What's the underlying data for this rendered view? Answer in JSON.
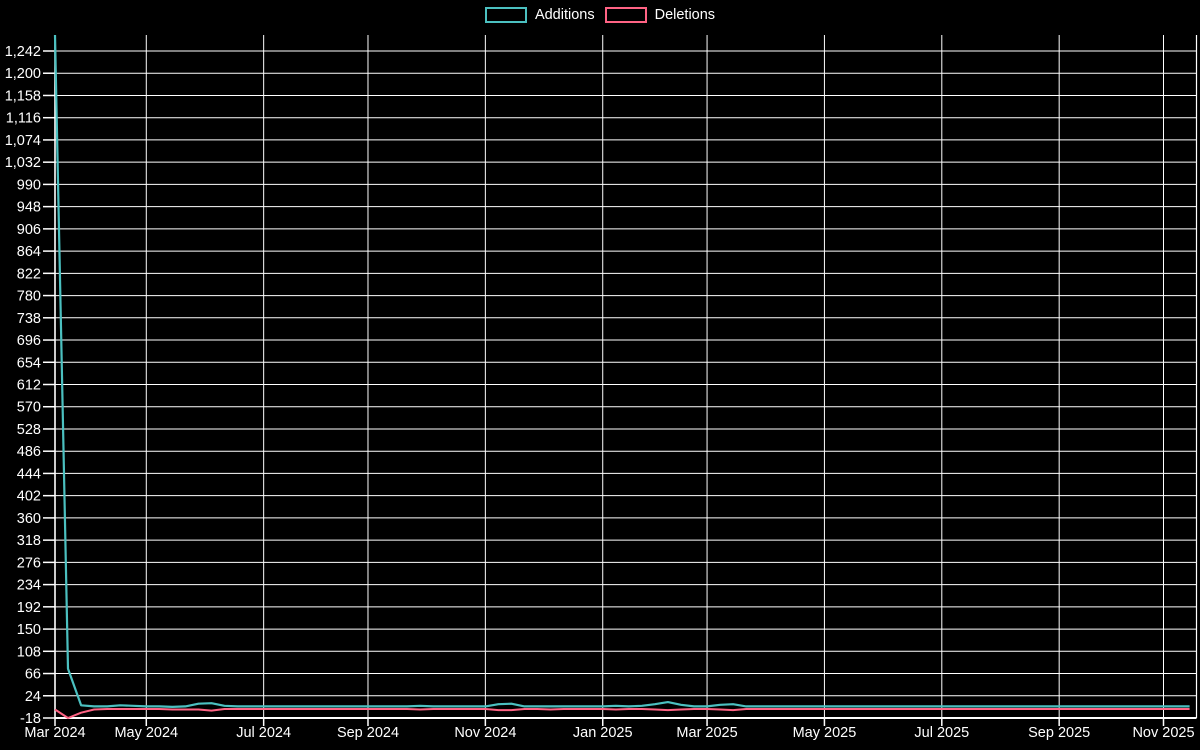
{
  "colors": {
    "background": "#000000",
    "grid": "#ffffff",
    "axis_text": "#ffffff",
    "additions": "#4bc0c0",
    "deletions": "#ff6384"
  },
  "chart_data": {
    "type": "line",
    "title": "",
    "xlabel": "",
    "ylabel": "",
    "legend_position": "top-center",
    "grid": true,
    "ylim": [
      -18,
      1272
    ],
    "y_tick_step": 42,
    "y_tick_labels": [
      "1,242",
      "1,200",
      "1,158",
      "1,116",
      "1,074",
      "1,032",
      "990",
      "948",
      "906",
      "864",
      "822",
      "780",
      "738",
      "696",
      "654",
      "612",
      "570",
      "528",
      "486",
      "444",
      "402",
      "360",
      "318",
      "276",
      "234",
      "192",
      "150",
      "108",
      "66",
      "24",
      "-18"
    ],
    "x_ticks": [
      {
        "label": "Mar 2024",
        "week": 0
      },
      {
        "label": "May 2024",
        "week": 7
      },
      {
        "label": "Jul 2024",
        "week": 16
      },
      {
        "label": "Sep 2024",
        "week": 24
      },
      {
        "label": "Nov 2024",
        "week": 33
      },
      {
        "label": "Jan 2025",
        "week": 42
      },
      {
        "label": "Mar 2025",
        "week": 50
      },
      {
        "label": "May 2025",
        "week": 59
      },
      {
        "label": "Jul 2025",
        "week": 68
      },
      {
        "label": "Sep 2025",
        "week": 77
      },
      {
        "label": "Nov 2025",
        "week": 85
      }
    ],
    "weeks_total": 88,
    "series": [
      {
        "name": "Additions",
        "color": "#4bc0c0",
        "values": [
          1272,
          75,
          6,
          4,
          4,
          6,
          5,
          4,
          4,
          3,
          4,
          9,
          10,
          5,
          4,
          4,
          4,
          4,
          4,
          4,
          4,
          4,
          4,
          4,
          4,
          4,
          4,
          4,
          5,
          4,
          4,
          4,
          4,
          4,
          8,
          9,
          4,
          4,
          4,
          4,
          4,
          4,
          4,
          5,
          4,
          5,
          8,
          12,
          7,
          4,
          4,
          7,
          8,
          4,
          4,
          4,
          4,
          4,
          4,
          4,
          4,
          4,
          4,
          4,
          4,
          4,
          4,
          4,
          4,
          4,
          4,
          4,
          4,
          4,
          4,
          4,
          4,
          4,
          4,
          4,
          4,
          4,
          4,
          4,
          4,
          4,
          4,
          4
        ]
      },
      {
        "name": "Deletions",
        "color": "#ff6384",
        "values": [
          -2,
          -18,
          -8,
          -2,
          -1,
          -1,
          -1,
          -1,
          -1,
          -2,
          -2,
          -2,
          -4,
          -1,
          -1,
          -1,
          -1,
          -1,
          -1,
          -1,
          -1,
          -1,
          -1,
          -1,
          -1,
          -1,
          -1,
          -1,
          -2,
          -1,
          -1,
          -1,
          -1,
          -1,
          -3,
          -3,
          -1,
          -1,
          -2,
          -1,
          -1,
          -1,
          -1,
          -2,
          -1,
          -1,
          -2,
          -3,
          -2,
          -1,
          -1,
          -2,
          -3,
          -1,
          -1,
          -1,
          -1,
          -1,
          -1,
          -1,
          -1,
          -1,
          -1,
          -1,
          -1,
          -1,
          -1,
          -1,
          -1,
          -1,
          -1,
          -1,
          -1,
          -1,
          -1,
          -1,
          -1,
          -1,
          -1,
          -1,
          -1,
          -1,
          -1,
          -1,
          -1,
          -1,
          -1,
          -1
        ]
      }
    ]
  }
}
